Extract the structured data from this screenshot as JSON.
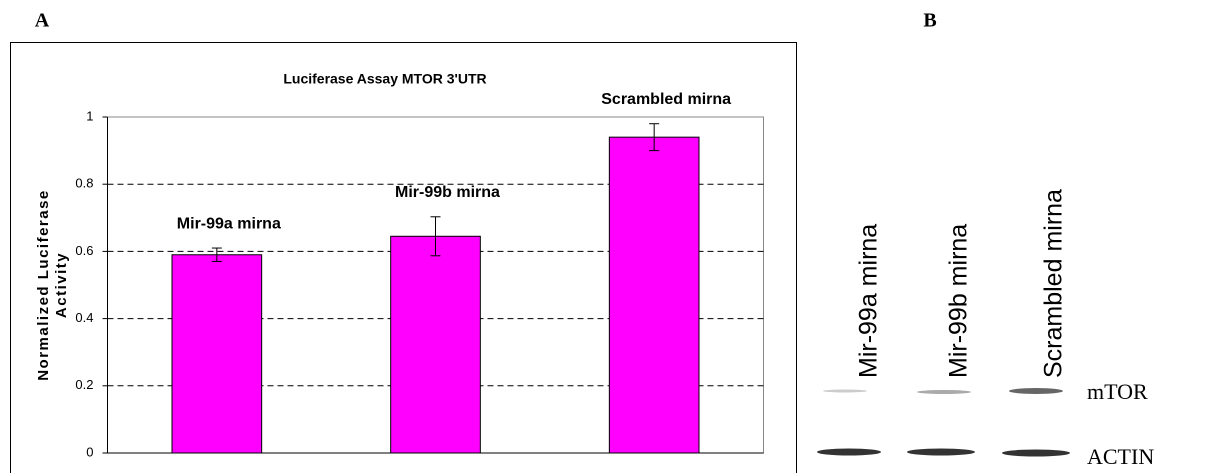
{
  "panels": {
    "a": "A",
    "b": "B"
  },
  "chart_data": {
    "type": "bar",
    "title": "Luciferase Assay MTOR 3'UTR",
    "ylabel": [
      "Normalized Luciferase",
      "Activity"
    ],
    "categories": [
      "Mir-99a mirna",
      "Mir-99b mirna",
      "Scrambled mirna"
    ],
    "values": [
      0.59,
      0.645,
      0.94
    ],
    "errors": [
      0.02,
      0.058,
      0.04
    ],
    "color": "#ff00ff",
    "ylim": [
      0,
      1
    ],
    "yticks": [
      0,
      0.2,
      0.4,
      0.6,
      0.8,
      1
    ],
    "grid": true
  },
  "blot": {
    "lanes": [
      "Mir-99a mirna",
      "Mir-99b mirna",
      "Scrambled mirna"
    ],
    "bands": [
      "mTOR",
      "ACTIN"
    ]
  }
}
